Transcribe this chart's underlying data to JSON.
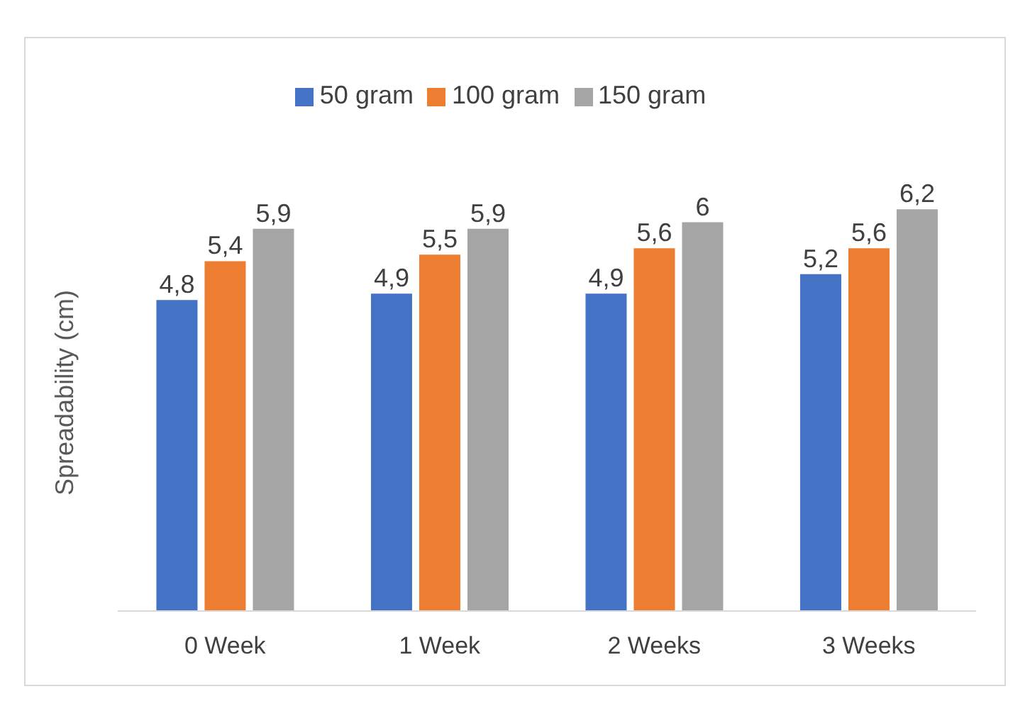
{
  "chart_data": {
    "type": "bar",
    "ylabel": "Spreadability (cm)",
    "categories": [
      "0 Week",
      "1 Week",
      "2 Weeks",
      "3 Weeks"
    ],
    "series": [
      {
        "name": "50 gram",
        "color": "#4472c4",
        "values": [
          4.8,
          4.9,
          4.9,
          5.2
        ],
        "value_labels": [
          "4,8",
          "4,9",
          "4,9",
          "5,2"
        ]
      },
      {
        "name": "100 gram",
        "color": "#ed7d31",
        "values": [
          5.4,
          5.5,
          5.6,
          5.6
        ],
        "value_labels": [
          "5,4",
          "5,5",
          "5,6",
          "5,6"
        ]
      },
      {
        "name": "150 gram",
        "color": "#a5a5a5",
        "values": [
          5.9,
          5.9,
          6,
          6.2
        ],
        "value_labels": [
          "5,9",
          "5,9",
          "6",
          "6,2"
        ]
      }
    ],
    "legend": "top",
    "grid": false
  }
}
